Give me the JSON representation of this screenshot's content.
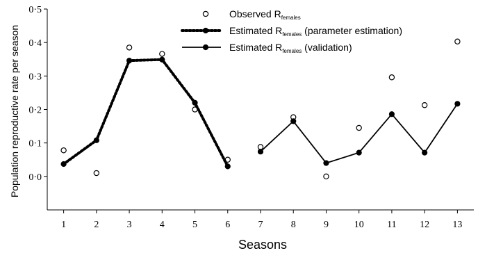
{
  "chart_data": {
    "type": "line",
    "xlabel": "Seasons",
    "ylabel": "Population reproductive rate per season",
    "xlim": [
      0.5,
      13.5
    ],
    "ylim": [
      -0.1,
      0.5
    ],
    "x_ticks": [
      "1",
      "2",
      "3",
      "4",
      "5",
      "6",
      "7",
      "8",
      "9",
      "10",
      "11",
      "12",
      "13"
    ],
    "y_ticks": [
      "0·0",
      "0·1",
      "0·2",
      "0·3",
      "0·4",
      "0·5"
    ],
    "y_tick_values": [
      0.0,
      0.1,
      0.2,
      0.3,
      0.4,
      0.5
    ],
    "grid": false,
    "legend_position": "top-center",
    "series": [
      {
        "name": "Observed R",
        "subscript": "females",
        "style": "open-circle",
        "x": [
          1,
          2,
          3,
          4,
          5,
          6,
          7,
          8,
          9,
          10,
          11,
          12,
          13
        ],
        "values": [
          0.078,
          0.01,
          0.385,
          0.366,
          0.2,
          0.05,
          0.088,
          0.177,
          0.0,
          0.145,
          0.296,
          0.213,
          0.403
        ]
      },
      {
        "name": "Estimated R",
        "subscript": "females",
        "suffix": " (parameter estimation)",
        "style": "dotted-filled",
        "x": [
          1,
          2,
          3,
          4,
          5,
          6
        ],
        "values": [
          0.037,
          0.108,
          0.346,
          0.349,
          0.22,
          0.03
        ]
      },
      {
        "name": "Estimated R",
        "subscript": "females",
        "suffix": " (validation)",
        "style": "solid-filled",
        "x": [
          7,
          8,
          9,
          10,
          11,
          12,
          13
        ],
        "values": [
          0.074,
          0.165,
          0.04,
          0.071,
          0.186,
          0.071,
          0.217
        ]
      }
    ]
  }
}
